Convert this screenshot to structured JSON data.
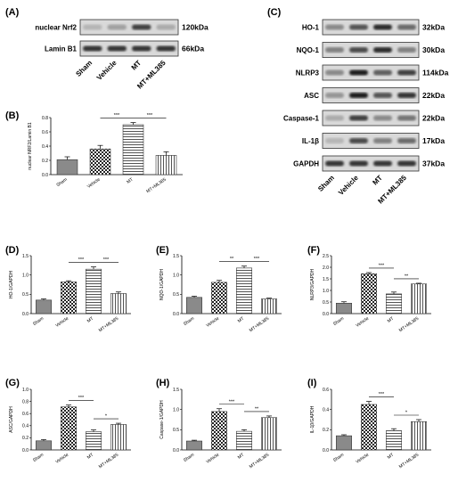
{
  "colors": {
    "bar_gray": "#8a8a8a",
    "band_dark": "#1a1a1a",
    "blot_bg": "#d9d9d9"
  },
  "blot_A": {
    "label": "(A)",
    "rows": [
      {
        "name": "nuclear Nrf2",
        "kda": "120kDa"
      },
      {
        "name": "Lamin B1",
        "kda": "66kDa"
      }
    ],
    "lanes": [
      "Sham",
      "Vehicle",
      "MT",
      "MT+ML385"
    ],
    "intensity": [
      [
        0.25,
        0.35,
        0.8,
        0.3
      ],
      [
        0.85,
        0.85,
        0.85,
        0.85
      ]
    ]
  },
  "blot_C": {
    "label": "(C)",
    "rows": [
      {
        "name": "HO-1",
        "kda": "32kDa"
      },
      {
        "name": "NQO-1",
        "kda": "30kDa"
      },
      {
        "name": "NLRP3",
        "kda": "114kDa"
      },
      {
        "name": "ASC",
        "kda": "22kDa"
      },
      {
        "name": "Caspase-1",
        "kda": "22kDa"
      },
      {
        "name": "IL-1β",
        "kda": "17kDa"
      },
      {
        "name": "GAPDH",
        "kda": "37kDa"
      }
    ],
    "lanes": [
      "Sham",
      "Vehicle",
      "MT",
      "MT+ML385"
    ],
    "intensity": [
      [
        0.45,
        0.7,
        0.9,
        0.6
      ],
      [
        0.5,
        0.75,
        0.9,
        0.5
      ],
      [
        0.45,
        0.95,
        0.65,
        0.8
      ],
      [
        0.4,
        0.95,
        0.7,
        0.85
      ],
      [
        0.3,
        0.8,
        0.45,
        0.55
      ],
      [
        0.25,
        0.75,
        0.5,
        0.6
      ],
      [
        0.85,
        0.85,
        0.85,
        0.85
      ]
    ]
  },
  "chart_data": [
    {
      "panel": "(B)",
      "type": "bar",
      "categories": [
        "Sham",
        "Vehicle",
        "MT",
        "MT+ML385"
      ],
      "values": [
        0.21,
        0.36,
        0.7,
        0.27
      ],
      "errors": [
        0.04,
        0.05,
        0.03,
        0.05
      ],
      "ylabel": "nuclear NRF2/Lamin B1",
      "ylim": [
        0,
        0.8
      ],
      "yticks": [
        "0.0",
        "0.2",
        "0.4",
        "0.6",
        "0.8"
      ],
      "sig": [
        {
          "from": 1,
          "to": 2,
          "text": "***"
        },
        {
          "from": 2,
          "to": 3,
          "text": "***"
        }
      ]
    },
    {
      "panel": "(D)",
      "type": "bar",
      "categories": [
        "Sham",
        "Vehicle",
        "MT",
        "MT+ML385"
      ],
      "values": [
        0.35,
        0.82,
        1.15,
        0.52
      ],
      "errors": [
        0.03,
        0.03,
        0.06,
        0.04
      ],
      "ylabel": "HO-1/GAPDH",
      "ylim": [
        0,
        1.5
      ],
      "yticks": [
        "0.0",
        "0.5",
        "1.0",
        "1.5"
      ],
      "sig": [
        {
          "from": 1,
          "to": 2,
          "text": "***"
        },
        {
          "from": 2,
          "to": 3,
          "text": "***"
        }
      ]
    },
    {
      "panel": "(E)",
      "type": "bar",
      "categories": [
        "Sham",
        "Vehicle",
        "MT",
        "MT+ML385"
      ],
      "values": [
        0.42,
        0.81,
        1.18,
        0.38
      ],
      "errors": [
        0.03,
        0.05,
        0.05,
        0.02
      ],
      "ylabel": "NQO-1/GAPDH",
      "ylim": [
        0,
        1.5
      ],
      "yticks": [
        "0.0",
        "0.5",
        "1.0",
        "1.5"
      ],
      "sig": [
        {
          "from": 1,
          "to": 2,
          "text": "**"
        },
        {
          "from": 2,
          "to": 3,
          "text": "***"
        }
      ]
    },
    {
      "panel": "(F)",
      "type": "bar",
      "categories": [
        "Sham",
        "Vehicle",
        "MT",
        "MT+ML385"
      ],
      "values": [
        0.45,
        1.72,
        0.85,
        1.28
      ],
      "errors": [
        0.06,
        0.05,
        0.08,
        0.03
      ],
      "ylabel": "NLRP3/GAPDH",
      "ylim": [
        0,
        2.5
      ],
      "yticks": [
        "0.0",
        "0.5",
        "1.0",
        "1.5",
        "2.0",
        "2.5"
      ],
      "sig": [
        {
          "from": 1,
          "to": 2,
          "text": "***"
        },
        {
          "from": 2,
          "to": 3,
          "text": "**"
        }
      ]
    },
    {
      "panel": "(G)",
      "type": "bar",
      "categories": [
        "Sham",
        "Vehicle",
        "MT",
        "MT+ML385"
      ],
      "values": [
        0.15,
        0.71,
        0.3,
        0.42
      ],
      "errors": [
        0.02,
        0.03,
        0.03,
        0.02
      ],
      "ylabel": "ASC/GAPDH",
      "ylim": [
        0,
        1.0
      ],
      "yticks": [
        "0.0",
        "0.2",
        "0.4",
        "0.6",
        "0.8",
        "1.0"
      ],
      "sig": [
        {
          "from": 1,
          "to": 2,
          "text": "***"
        },
        {
          "from": 2,
          "to": 3,
          "text": "*"
        }
      ]
    },
    {
      "panel": "(H)",
      "type": "bar",
      "categories": [
        "Sham",
        "Vehicle",
        "MT",
        "MT+ML385"
      ],
      "values": [
        0.22,
        0.95,
        0.46,
        0.8
      ],
      "errors": [
        0.02,
        0.07,
        0.04,
        0.04
      ],
      "ylabel": "Caspase-1/GAPDH",
      "ylim": [
        0,
        1.5
      ],
      "yticks": [
        "0.0",
        "0.5",
        "1.0",
        "1.5"
      ],
      "sig": [
        {
          "from": 1,
          "to": 2,
          "text": "***"
        },
        {
          "from": 2,
          "to": 3,
          "text": "**"
        }
      ]
    },
    {
      "panel": "(I)",
      "type": "bar",
      "categories": [
        "Sham",
        "Vehicle",
        "MT",
        "MT+ML385"
      ],
      "values": [
        0.14,
        0.45,
        0.19,
        0.28
      ],
      "errors": [
        0.01,
        0.03,
        0.02,
        0.02
      ],
      "ylabel": "IL-1β/GAPDH",
      "ylim": [
        0,
        0.6
      ],
      "yticks": [
        "0.0",
        "0.2",
        "0.4",
        "0.6"
      ],
      "sig": [
        {
          "from": 1,
          "to": 2,
          "text": "***"
        },
        {
          "from": 2,
          "to": 3,
          "text": "*"
        }
      ]
    }
  ]
}
